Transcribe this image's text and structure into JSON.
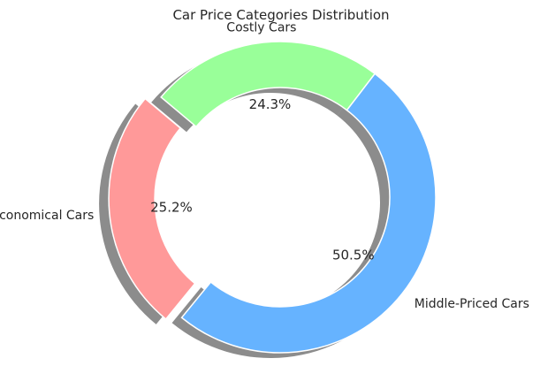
{
  "chart_data": {
    "type": "pie",
    "style": "donut",
    "title": "Car Price Categories Distribution",
    "categories": [
      "Economical Cars",
      "Middle-Priced Cars",
      "Costly Cars"
    ],
    "values": [
      25.2,
      50.5,
      24.3
    ],
    "value_labels": [
      "25.2%",
      "50.5%",
      "24.3%"
    ],
    "colors": [
      "#ff9999",
      "#66b3ff",
      "#99ff99"
    ],
    "exploded": [
      "Economical Cars"
    ],
    "shadow": true,
    "legend": "none"
  }
}
